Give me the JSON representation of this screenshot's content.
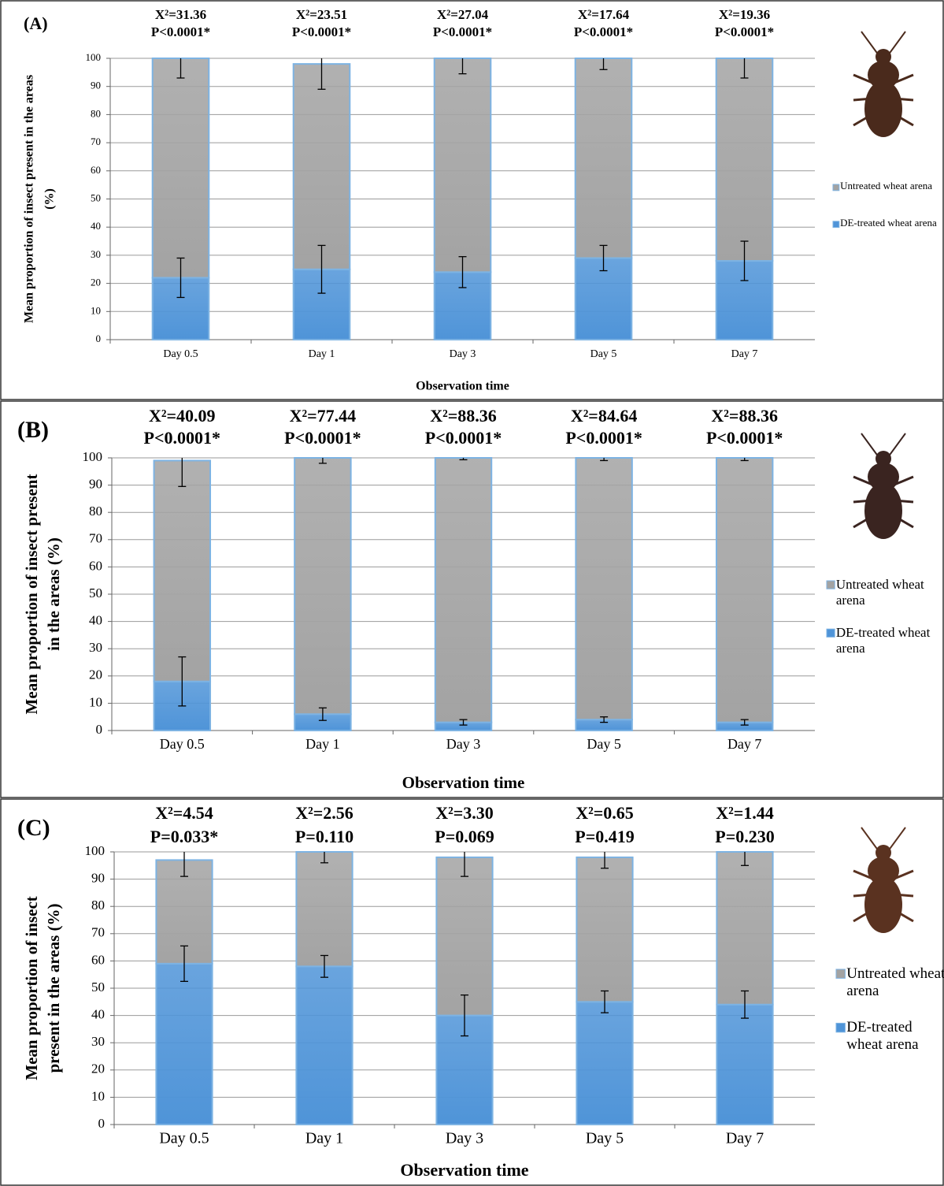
{
  "chart_data": [
    {
      "type": "stacked_bar",
      "panel_label": "(A)",
      "y_label": [
        "Mean proportion of insect present in the areas",
        "(%)"
      ],
      "x_label": "Observation time",
      "categories": [
        "Day 0.5",
        "Day 1",
        "Day 3",
        "Day 5",
        "Day 7"
      ],
      "annotations": [
        [
          "X²=31.36",
          "P<0.0001*"
        ],
        [
          "X²=23.51",
          "P<0.0001*"
        ],
        [
          "X²=27.04",
          "P<0.0001*"
        ],
        [
          "X²=17.64",
          "P<0.0001*"
        ],
        [
          "X²=19.36",
          "P<0.0001*"
        ]
      ],
      "series": [
        {
          "name": "DE-treated wheat arena",
          "color": "#4f94d8",
          "values": [
            22,
            25,
            24,
            29,
            28
          ],
          "errors": [
            7,
            8.5,
            5.5,
            4.5,
            7
          ]
        },
        {
          "name": "Untreated wheat arena",
          "color": "#a3a3a3",
          "values": [
            78,
            73,
            76,
            71,
            72
          ],
          "errors": [
            7,
            9,
            5.5,
            4,
            7
          ]
        }
      ],
      "ylim": [
        0,
        100
      ],
      "yticks": [
        0,
        10,
        20,
        30,
        40,
        50,
        60,
        70,
        80,
        90,
        100
      ],
      "grid": true,
      "legend": "right"
    },
    {
      "type": "stacked_bar",
      "panel_label": "(B)",
      "y_label": [
        "Mean proportion of insect present",
        "in the areas (%)"
      ],
      "x_label": "Observation time",
      "categories": [
        "Day 0.5",
        "Day 1",
        "Day 3",
        "Day 5",
        "Day 7"
      ],
      "annotations": [
        [
          "X²=40.09",
          "P<0.0001*"
        ],
        [
          "X²=77.44",
          "P<0.0001*"
        ],
        [
          "X²=88.36",
          "P<0.0001*"
        ],
        [
          "X²=84.64",
          "P<0.0001*"
        ],
        [
          "X²=88.36",
          "P<0.0001*"
        ]
      ],
      "series": [
        {
          "name": "DE-treated wheat arena",
          "color": "#4f94d8",
          "values": [
            18,
            6,
            3,
            4,
            3
          ],
          "errors": [
            9,
            2.3,
            1,
            1,
            1
          ]
        },
        {
          "name": "Untreated wheat arena",
          "color": "#a3a3a3",
          "values": [
            81,
            94,
            97,
            96,
            97
          ],
          "errors": [
            9.5,
            2,
            0.7,
            1,
            1
          ]
        }
      ],
      "ylim": [
        0,
        100
      ],
      "yticks": [
        0,
        10,
        20,
        30,
        40,
        50,
        60,
        70,
        80,
        90,
        100
      ],
      "grid": true,
      "legend": "right"
    },
    {
      "type": "stacked_bar",
      "panel_label": "(C)",
      "y_label": [
        "Mean proportion of insect",
        "present in the areas (%)"
      ],
      "x_label": "Observation time",
      "categories": [
        "Day 0.5",
        "Day 1",
        "Day 3",
        "Day 5",
        "Day 7"
      ],
      "annotations": [
        [
          "X²=4.54",
          "P=0.033*"
        ],
        [
          "X²=2.56",
          "P=0.110"
        ],
        [
          "X²=3.30",
          "P=0.069"
        ],
        [
          "X²=0.65",
          "P=0.419"
        ],
        [
          "X²=1.44",
          "P=0.230"
        ]
      ],
      "series": [
        {
          "name": "DE-treated wheat arena",
          "color": "#4f94d8",
          "values": [
            59,
            58,
            40,
            45,
            44
          ],
          "errors": [
            6.5,
            4,
            7.5,
            4,
            5
          ]
        },
        {
          "name": "Untreated wheat arena",
          "color": "#a3a3a3",
          "values": [
            38,
            42,
            58,
            53,
            56
          ],
          "errors": [
            6,
            4,
            7,
            4,
            5
          ]
        }
      ],
      "ylim": [
        0,
        100
      ],
      "yticks": [
        0,
        10,
        20,
        30,
        40,
        50,
        60,
        70,
        80,
        90,
        100
      ],
      "grid": true,
      "legend": "right"
    }
  ]
}
